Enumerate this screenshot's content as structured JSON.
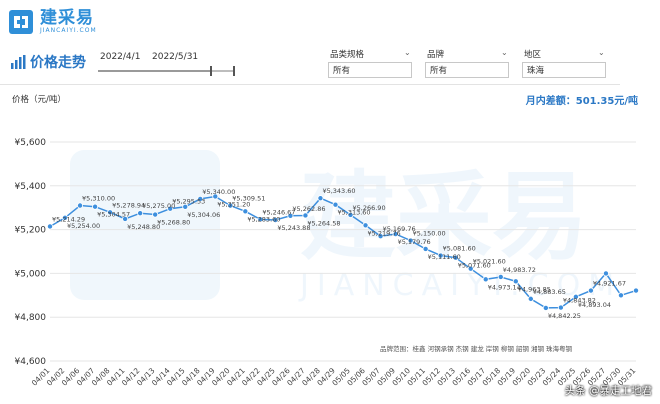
{
  "logo": {
    "name_cn": "建采易",
    "name_en": "JIANCAIYI.COM"
  },
  "header": {
    "title": "价格走势"
  },
  "date_range": {
    "start": "2022/4/1",
    "end": "2022/5/31"
  },
  "filters": [
    {
      "label": "品类规格",
      "value": "所有"
    },
    {
      "label": "品牌",
      "value": "所有"
    },
    {
      "label": "地区",
      "value": "珠海"
    }
  ],
  "y_label": "价格（元/吨）",
  "monthly_diff": "月内差额：501.35元/吨",
  "brand_note": "品牌范围：桂鑫 河钢承钢 杰钢 建龙 岸钢 柳钢 韶钢 湘钢 珠海粤钢",
  "watermark": "头条 @暴走工地君",
  "colors": {
    "line": "#3d8fde",
    "point": "#3d8fde",
    "grid": "#e6e6e6",
    "accent": "#2b78c5"
  },
  "chart_data": {
    "type": "line",
    "x": [
      "04/01",
      "04/02",
      "04/06",
      "04/07",
      "04/08",
      "04/11",
      "04/12",
      "04/13",
      "04/14",
      "04/15",
      "04/18",
      "04/19",
      "04/20",
      "04/21",
      "04/22",
      "04/25",
      "04/26",
      "04/27",
      "04/28",
      "04/29",
      "05/05",
      "05/06",
      "05/07",
      "05/09",
      "05/10",
      "05/11",
      "05/12",
      "05/13",
      "05/16",
      "05/17",
      "05/18",
      "05/19",
      "05/20",
      "05/23",
      "05/24",
      "05/25",
      "05/26",
      "05/27",
      "05/30",
      "05/31"
    ],
    "values": [
      5214.29,
      5254.0,
      5310.0,
      5304.57,
      5278.94,
      5248.8,
      5275.0,
      5268.8,
      5295.53,
      5304.06,
      5340.0,
      5351.2,
      5309.51,
      5283.6,
      5246.67,
      5243.88,
      5262.86,
      5264.58,
      5343.6,
      5313.6,
      5266.9,
      5219.76,
      5169.76,
      5179.76,
      5150.0,
      5111.6,
      5081.6,
      5071.6,
      5021.6,
      4973.14,
      4983.72,
      4963.85,
      4883.65,
      4842.25,
      4843.82,
      4893.04,
      4921.67,
      5000.0,
      4900.0,
      4921.67
    ],
    "labels": [
      "¥5,214.29",
      "¥5,254.00",
      "¥5,310.00",
      "¥5,304.57",
      "¥5,278.94",
      "¥5,248.80",
      "¥5,275.00",
      "¥5,268.80",
      "¥5,295.53",
      "¥5,304.06",
      "¥5,340.00",
      "¥5,351.20",
      "¥5,309.51",
      "¥5,283.60",
      "¥5,246.67",
      "¥5,243.88",
      "¥5,262.86",
      "¥5,264.58",
      "¥5,343.60",
      "¥5,313.60",
      "¥5,266.90",
      "¥5,219.76",
      "¥5,169.76",
      "¥5,179.76",
      "¥5,150.00",
      "¥5,111.60",
      "¥5,081.60",
      "¥5,071.60",
      "¥5,021.60",
      "¥4,973.14",
      "¥4,983.72",
      "¥4,963.85",
      "¥4,883.65",
      "¥4,842.25",
      "¥4,843.82",
      "¥4,893.04",
      "¥4,921.67",
      "",
      "",
      ""
    ],
    "y_ticks": [
      "¥4,600",
      "¥4,800",
      "¥5,000",
      "¥5,200",
      "¥5,400",
      "¥5,600"
    ],
    "y_tick_values": [
      4600,
      4800,
      5000,
      5200,
      5400,
      5600
    ],
    "ylim": [
      4600,
      5600
    ],
    "grid": true
  }
}
